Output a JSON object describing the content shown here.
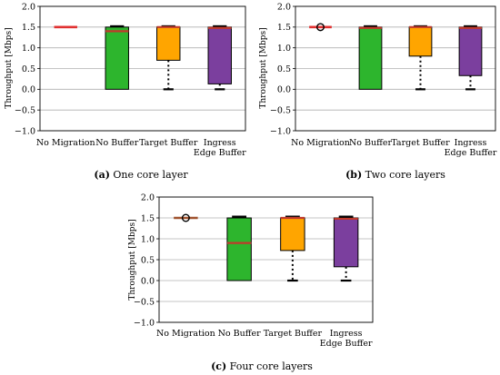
{
  "chart_data": [
    {
      "type": "box",
      "caption_letter": "(a)",
      "caption_text": "One core layer",
      "ylabel": "Throughput [Mbps]",
      "ylim": [
        -1.0,
        2.0
      ],
      "yticks": [
        "2.0",
        "1.5",
        "1.0",
        "0.5",
        "0.0",
        "−0.5",
        "−1.0"
      ],
      "grid": true,
      "categories": [
        {
          "label": [
            "No Migration"
          ],
          "min": 1.5,
          "q1": 1.5,
          "median": 1.5,
          "q3": 1.5,
          "max": 1.5,
          "color": "#e03030",
          "outliers": []
        },
        {
          "label": [
            "No Buffer"
          ],
          "min": 0.0,
          "q1": 0.0,
          "median": 1.4,
          "q3": 1.5,
          "max": 1.52,
          "color": "#2db52d",
          "outliers": []
        },
        {
          "label": [
            "Target Buffer"
          ],
          "min": 0.0,
          "q1": 0.7,
          "median": 1.5,
          "q3": 1.5,
          "max": 1.52,
          "color": "#ffa500",
          "outliers": []
        },
        {
          "label": [
            "Ingress",
            "Edge Buffer"
          ],
          "min": 0.0,
          "q1": 0.13,
          "median": 1.48,
          "q3": 1.5,
          "max": 1.52,
          "color": "#7b3f9e",
          "outliers": []
        }
      ]
    },
    {
      "type": "box",
      "caption_letter": "(b)",
      "caption_text": "Two core layers",
      "ylabel": "Throughput [Mbps]",
      "ylim": [
        -1.0,
        2.0
      ],
      "yticks": [
        "2.0",
        "1.5",
        "1.0",
        "0.5",
        "0.0",
        "−0.5",
        "−1.0"
      ],
      "grid": true,
      "categories": [
        {
          "label": [
            "No Migration"
          ],
          "min": 1.5,
          "q1": 1.5,
          "median": 1.5,
          "q3": 1.5,
          "max": 1.5,
          "color": "#e03030",
          "outliers": [
            1.5
          ]
        },
        {
          "label": [
            "No Buffer"
          ],
          "min": 0.0,
          "q1": 0.0,
          "median": 1.48,
          "q3": 1.5,
          "max": 1.52,
          "color": "#2db52d",
          "outliers": []
        },
        {
          "label": [
            "Target Buffer"
          ],
          "min": 0.0,
          "q1": 0.8,
          "median": 1.5,
          "q3": 1.5,
          "max": 1.52,
          "color": "#ffa500",
          "outliers": []
        },
        {
          "label": [
            "Ingress",
            "Edge Buffer"
          ],
          "min": 0.0,
          "q1": 0.33,
          "median": 1.48,
          "q3": 1.5,
          "max": 1.52,
          "color": "#7b3f9e",
          "outliers": []
        }
      ]
    },
    {
      "type": "box",
      "caption_letter": "(c)",
      "caption_text": "Four core layers",
      "ylabel": "Throughput [Mbps]",
      "ylim": [
        -1.0,
        2.0
      ],
      "yticks": [
        "2.0",
        "1.5",
        "1.0",
        "0.5",
        "0.0",
        "−0.5",
        "−1.0"
      ],
      "grid": true,
      "categories": [
        {
          "label": [
            "No Migration"
          ],
          "min": 1.5,
          "q1": 1.5,
          "median": 1.5,
          "q3": 1.5,
          "max": 1.5,
          "color": "#a0522d",
          "outliers": [
            1.5
          ]
        },
        {
          "label": [
            "No Buffer"
          ],
          "min": 0.0,
          "q1": 0.0,
          "median": 0.9,
          "q3": 1.5,
          "max": 1.53,
          "color": "#2db52d",
          "outliers": []
        },
        {
          "label": [
            "Target Buffer"
          ],
          "min": 0.0,
          "q1": 0.72,
          "median": 1.5,
          "q3": 1.5,
          "max": 1.53,
          "color": "#ffa500",
          "outliers": []
        },
        {
          "label": [
            "Ingress",
            "Edge Buffer"
          ],
          "min": 0.0,
          "q1": 0.33,
          "median": 1.48,
          "q3": 1.5,
          "max": 1.53,
          "color": "#7b3f9e",
          "outliers": []
        }
      ]
    }
  ]
}
